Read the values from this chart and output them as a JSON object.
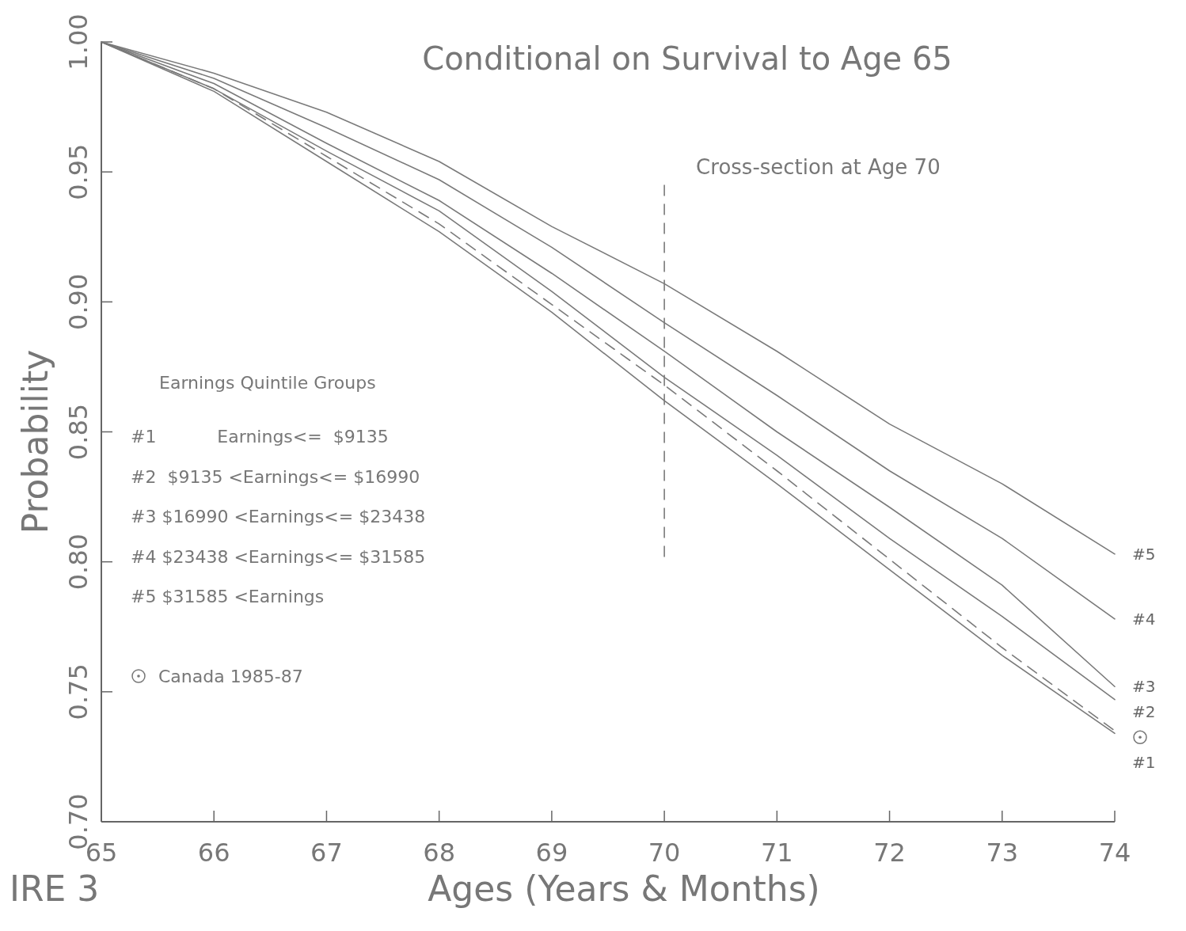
{
  "chart_data": {
    "type": "line",
    "title": "Conditional on Survival to Age 65",
    "xlabel": "Ages (Years & Months)",
    "ylabel": "Probability",
    "legend_title": "Earnings Quintile Groups",
    "x": [
      65,
      66,
      67,
      68,
      69,
      70,
      71,
      72,
      73,
      74
    ],
    "xlim": [
      65,
      74
    ],
    "xticks": [
      65,
      66,
      67,
      68,
      69,
      70,
      71,
      72,
      73,
      74
    ],
    "ylim": [
      0.7,
      1.0
    ],
    "yticks": [
      {
        "value": 0.7,
        "label": "0.70"
      },
      {
        "value": 0.75,
        "label": "0.75"
      },
      {
        "value": 0.8,
        "label": "0.80"
      },
      {
        "value": 0.85,
        "label": "0.85"
      },
      {
        "value": 0.9,
        "label": "0.90"
      },
      {
        "value": 0.95,
        "label": "0.95"
      },
      {
        "value": 1.0,
        "label": "1.00"
      }
    ],
    "grid": false,
    "legend": "left",
    "marker": "none",
    "series": [
      {
        "name": "#5",
        "color": "#7a7a7a",
        "values": [
          1.0,
          0.988,
          0.973,
          0.954,
          0.929,
          0.907,
          0.881,
          0.853,
          0.83,
          0.803
        ]
      },
      {
        "name": "#4",
        "color": "#7a7a7a",
        "values": [
          1.0,
          0.986,
          0.967,
          0.947,
          0.921,
          0.892,
          0.864,
          0.835,
          0.809,
          0.778
        ]
      },
      {
        "name": "#3",
        "color": "#7a7a7a",
        "values": [
          1.0,
          0.984,
          0.961,
          0.939,
          0.911,
          0.881,
          0.85,
          0.821,
          0.791,
          0.752
        ]
      },
      {
        "name": "#2",
        "color": "#7a7a7a",
        "values": [
          1.0,
          0.982,
          0.958,
          0.935,
          0.904,
          0.871,
          0.841,
          0.809,
          0.779,
          0.747
        ]
      },
      {
        "name": "Canada 1985-87",
        "color": "#7a7a7a",
        "line_style": "dashed",
        "values": [
          1.0,
          0.982,
          0.956,
          0.93,
          0.899,
          0.868,
          0.835,
          0.801,
          0.767,
          0.735
        ]
      },
      {
        "name": "#1",
        "color": "#7a7a7a",
        "values": [
          1.0,
          0.981,
          0.954,
          0.927,
          0.896,
          0.862,
          0.83,
          0.797,
          0.764,
          0.734
        ]
      }
    ],
    "ref_lines": [
      {
        "axis": "x",
        "value": 70,
        "label": "Cross-section at Age 70",
        "line_style": "dashed",
        "color": "#7a7a7a"
      }
    ],
    "annotations": [
      "#1           Earnings<=  $9135",
      "#2  $9135 <Earnings<= $16990",
      "#3 $16990 <Earnings<= $23438",
      "#4 $23438 <Earnings<= $31585",
      "#5 $31585 <Earnings",
      "IRE 3"
    ]
  }
}
